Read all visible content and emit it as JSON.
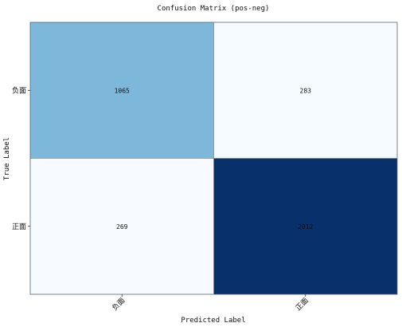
{
  "chart_data": {
    "type": "heatmap",
    "title": "Confusion Matrix (pos-neg)",
    "xlabel": "Predicted Label",
    "ylabel": "True Label",
    "x_categories": [
      "负面",
      "正面"
    ],
    "y_categories": [
      "负面",
      "正面"
    ],
    "values": [
      [
        1065,
        283
      ],
      [
        269,
        2012
      ]
    ],
    "colormap": "Blues",
    "grid": true,
    "colors": {
      "low": "#f7fbff",
      "high": "#08306b",
      "grid": "#7f8c99",
      "frame": "#5a6570"
    }
  }
}
